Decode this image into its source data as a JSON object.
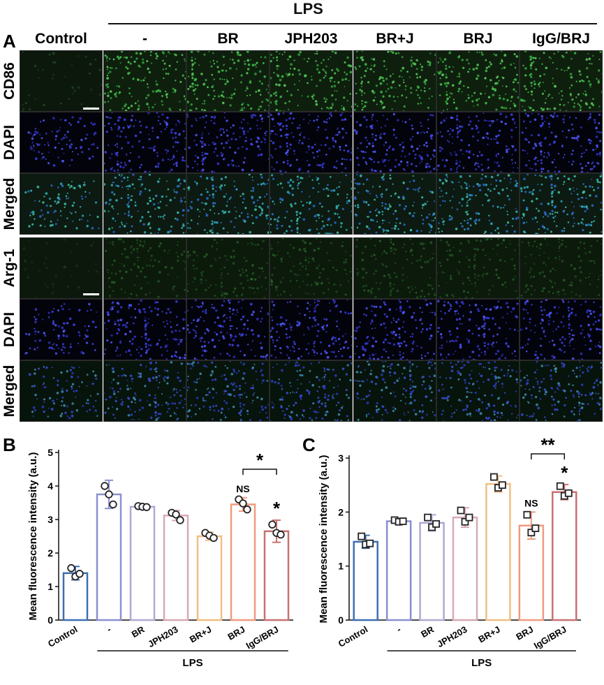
{
  "figure": {
    "panel_a_letter": "A",
    "panel_b_letter": "B",
    "panel_c_letter": "C",
    "lps_top_label": "LPS",
    "column_labels": [
      "Control",
      "-",
      "BR",
      "JPH203",
      "BR+J",
      "BRJ",
      "IgG/BRJ"
    ],
    "row_labels": [
      "CD86",
      "DAPI",
      "Merged",
      "Arg-1",
      "DAPI",
      "Merged"
    ],
    "row_channels": [
      "green_bright",
      "blue",
      "merged_green",
      "green_dim",
      "blue",
      "merged_blue"
    ]
  },
  "chart_data": [
    {
      "type": "bar",
      "panel": "B",
      "ylabel": "Mean fluorescence intensity (a.u.)",
      "ylim": [
        0,
        5
      ],
      "yticks": [
        0,
        1,
        2,
        3,
        4,
        5
      ],
      "categories": [
        "Control",
        "-",
        "BR",
        "JPH203",
        "BR+J",
        "BRJ",
        "IgG/BRJ"
      ],
      "values": [
        1.4,
        3.75,
        3.38,
        3.12,
        2.5,
        3.45,
        2.65
      ],
      "errors": [
        0.2,
        0.42,
        0.05,
        0.15,
        0.12,
        0.2,
        0.33
      ],
      "points": [
        [
          1.55,
          1.3,
          1.38
        ],
        [
          4.0,
          3.75,
          3.45
        ],
        [
          3.4,
          3.38,
          3.37
        ],
        [
          3.2,
          3.15,
          2.98
        ],
        [
          2.6,
          2.52,
          2.45
        ],
        [
          3.6,
          3.48,
          3.3
        ],
        [
          2.85,
          2.6,
          2.55
        ]
      ],
      "marker": "circle",
      "colors": [
        "#3d6fb2",
        "#8a8fd0",
        "#b0a8d4",
        "#d8a9b4",
        "#f0bf84",
        "#ef9b80",
        "#c87070"
      ],
      "lps_label": "LPS",
      "sig_labels": [
        "",
        "",
        "",
        "",
        "",
        "NS",
        "*"
      ],
      "bracket": {
        "from": 5,
        "to": 6,
        "label": "*"
      }
    },
    {
      "type": "bar",
      "panel": "C",
      "ylabel": "Mean fluorescence intensity (a.u.)",
      "ylim": [
        0,
        3
      ],
      "yticks": [
        0,
        1,
        2,
        3
      ],
      "categories": [
        "Control",
        "-",
        "BR",
        "JPH203",
        "BR+J",
        "BRJ",
        "IgG/BRJ"
      ],
      "values": [
        1.45,
        1.83,
        1.8,
        1.9,
        2.52,
        1.75,
        2.37
      ],
      "errors": [
        0.12,
        0.05,
        0.15,
        0.18,
        0.15,
        0.25,
        0.14
      ],
      "points": [
        [
          1.55,
          1.4,
          1.42
        ],
        [
          1.85,
          1.82,
          1.83
        ],
        [
          1.9,
          1.72,
          1.78
        ],
        [
          2.03,
          1.82,
          1.9
        ],
        [
          2.65,
          2.45,
          2.5
        ],
        [
          1.95,
          1.62,
          1.7
        ],
        [
          2.48,
          2.3,
          2.35
        ]
      ],
      "marker": "square",
      "colors": [
        "#3d6fb2",
        "#8a8fd0",
        "#b0a8d4",
        "#d8a9b4",
        "#f0bf84",
        "#ef9b80",
        "#c87070"
      ],
      "lps_label": "LPS",
      "sig_labels": [
        "",
        "",
        "",
        "",
        "",
        "NS",
        "*"
      ],
      "bracket": {
        "from": 5,
        "to": 6,
        "label": "**"
      }
    }
  ]
}
